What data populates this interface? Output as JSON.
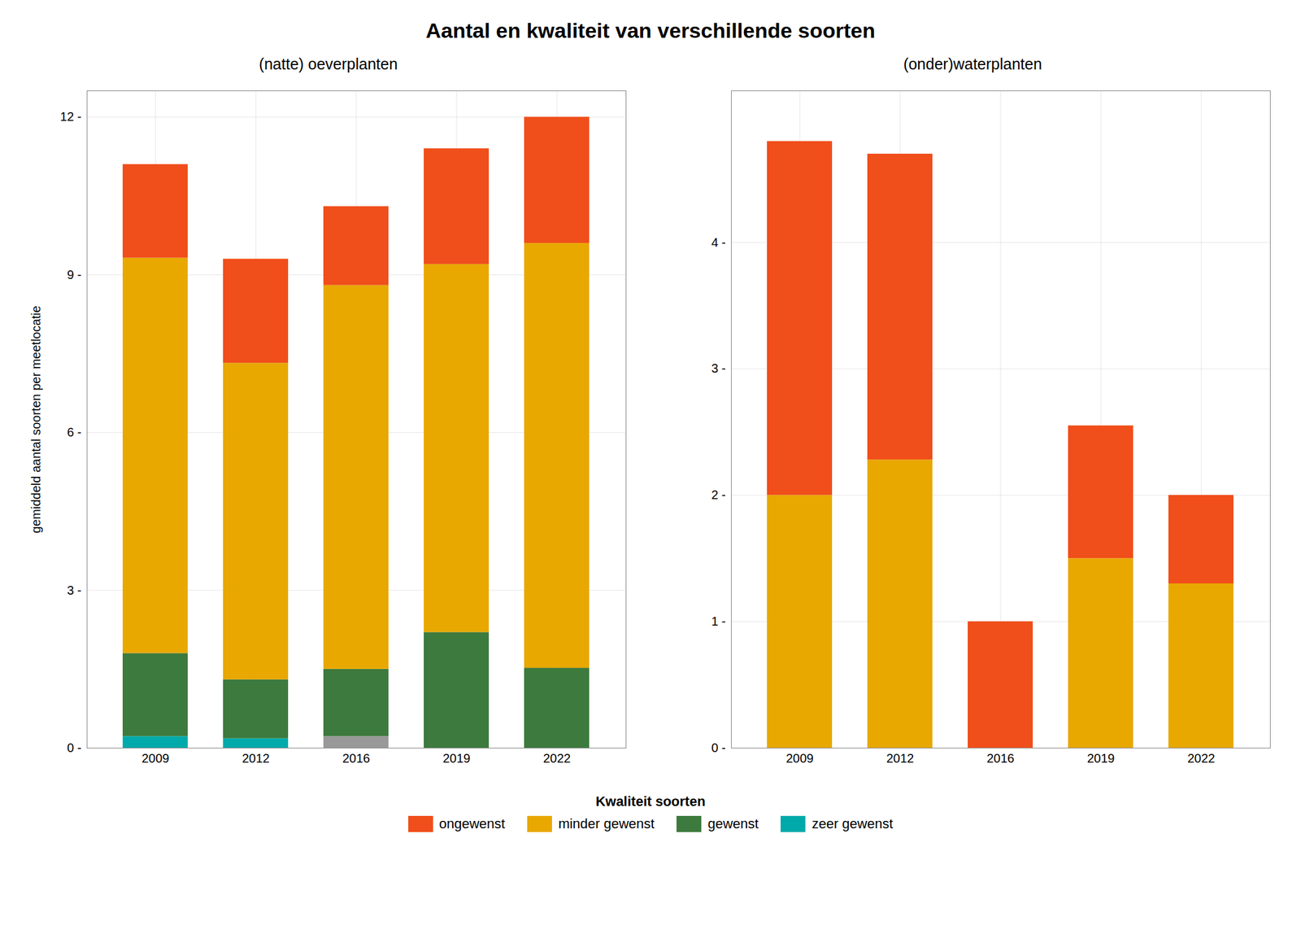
{
  "title": "Aantal en kwaliteit van verschillende soorten",
  "legend": "bottom",
  "legend_title": "Kwaliteit soorten",
  "chart_data": [
    {
      "type": "bar",
      "stacked": true,
      "grid": true,
      "subtitle": "(natte) oeverplanten",
      "ylabel": "gemiddeld aantal soorten per meetlocatie",
      "categories": [
        "2009",
        "2012",
        "2016",
        "2019",
        "2022"
      ],
      "series": [
        {
          "name": "zeer gewenst",
          "color": "#00AAAA",
          "values": [
            0.22,
            0.18,
            0.0,
            0.0,
            0.0
          ]
        },
        {
          "color": "#999999",
          "values": [
            0.0,
            0.0,
            0.22,
            0.0,
            0.0
          ]
        },
        {
          "name": "gewenst",
          "color": "#3D7A3D",
          "values": [
            1.58,
            1.12,
            1.28,
            2.2,
            1.52
          ]
        },
        {
          "name": "minder gewenst",
          "color": "#E8A800",
          "values": [
            7.52,
            6.02,
            7.3,
            7.0,
            8.08
          ]
        },
        {
          "name": "ongewenst",
          "color": "#F04E1A",
          "values": [
            1.78,
            1.98,
            1.5,
            2.2,
            2.4
          ]
        }
      ],
      "ylim": [
        0,
        12.5
      ],
      "yticks": [
        {
          "value": 0,
          "label": "0 -"
        },
        {
          "value": 3,
          "label": "3 -"
        },
        {
          "value": 6,
          "label": "6 -"
        },
        {
          "value": 9,
          "label": "9 -"
        },
        {
          "value": 12,
          "label": "12 -"
        }
      ]
    },
    {
      "type": "bar",
      "stacked": true,
      "grid": true,
      "subtitle": "(onder)waterplanten",
      "categories": [
        "2009",
        "2012",
        "2016",
        "2019",
        "2022"
      ],
      "series": [
        {
          "name": "minder gewenst",
          "color": "#E8A800",
          "values": [
            2.0,
            2.28,
            0.0,
            1.5,
            1.3
          ]
        },
        {
          "name": "ongewenst",
          "color": "#F04E1A",
          "values": [
            2.8,
            2.42,
            1.0,
            1.05,
            0.7
          ]
        }
      ],
      "ylim": [
        0,
        5.2
      ],
      "yticks": [
        {
          "value": 0,
          "label": "0 -"
        },
        {
          "value": 1,
          "label": "1 -"
        },
        {
          "value": 2,
          "label": "2 -"
        },
        {
          "value": 3,
          "label": "3 -"
        },
        {
          "value": 4,
          "label": "4 -"
        }
      ]
    }
  ]
}
